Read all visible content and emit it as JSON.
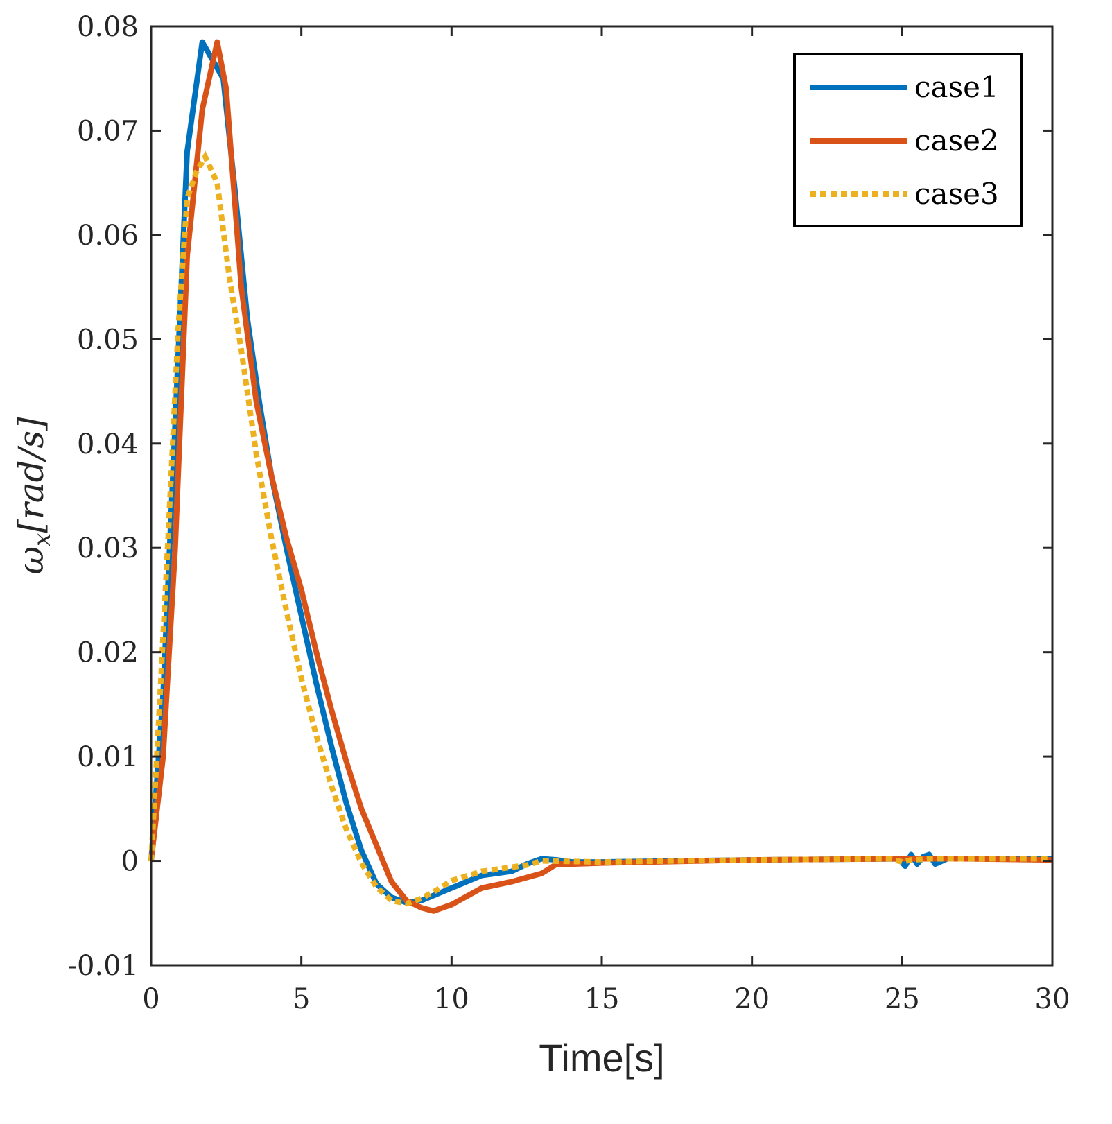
{
  "chart_data": {
    "type": "line",
    "title": "",
    "xlabel": "Time[s]",
    "ylabel": "ω_x[rad/s]",
    "ylabel_parts": {
      "symbol": "ω",
      "subscript": "x",
      "unit": "[rad/s]"
    },
    "xlim": [
      0,
      30
    ],
    "ylim": [
      -0.01,
      0.08
    ],
    "xticks": [
      0,
      5,
      10,
      15,
      20,
      25,
      30
    ],
    "xtick_labels": [
      "0",
      "5",
      "10",
      "15",
      "20",
      "25",
      "30"
    ],
    "yticks": [
      -0.01,
      0,
      0.01,
      0.02,
      0.03,
      0.04,
      0.05,
      0.06,
      0.07,
      0.08
    ],
    "ytick_labels": [
      "-0.01",
      "0",
      "0.01",
      "0.02",
      "0.03",
      "0.04",
      "0.05",
      "0.06",
      "0.07",
      "0.08"
    ],
    "grid": false,
    "legend_position": "top-right",
    "series": [
      {
        "name": "case1",
        "color": "#0072BD",
        "style": "solid",
        "x": [
          0,
          0.4,
          0.8,
          1.2,
          1.7,
          2.0,
          2.4,
          2.8,
          3.2,
          3.6,
          4.0,
          4.5,
          5.0,
          5.5,
          6.0,
          6.5,
          7.0,
          7.5,
          8.0,
          8.5,
          9.0,
          10.0,
          11.0,
          12.0,
          12.5,
          13.0,
          13.5,
          14.0,
          15.0,
          20.0,
          24.9,
          25.1,
          25.3,
          25.5,
          25.7,
          25.9,
          26.1,
          26.5,
          30.0
        ],
        "values": [
          0,
          0.016,
          0.042,
          0.068,
          0.0785,
          0.077,
          0.075,
          0.064,
          0.052,
          0.044,
          0.037,
          0.03,
          0.0235,
          0.017,
          0.011,
          0.0055,
          0.001,
          -0.0022,
          -0.0035,
          -0.004,
          -0.0038,
          -0.0026,
          -0.0014,
          -0.001,
          -0.0003,
          0.0002,
          0.0001,
          -0.0001,
          -0.0001,
          0.0001,
          0.0002,
          -0.0005,
          0.0006,
          -0.0003,
          0.0004,
          0.0006,
          -0.0003,
          0.0002,
          0.0002
        ]
      },
      {
        "name": "case2",
        "color": "#D95319",
        "style": "solid",
        "x": [
          0,
          0.4,
          0.8,
          1.2,
          1.7,
          2.2,
          2.5,
          3.0,
          3.5,
          4.0,
          4.5,
          5.0,
          5.5,
          6.0,
          6.5,
          7.0,
          7.5,
          8.0,
          8.5,
          9.0,
          9.4,
          10.0,
          11.0,
          12.0,
          13.0,
          13.5,
          14.0,
          15.0,
          20.0,
          25.0,
          27.0,
          30.0
        ],
        "values": [
          0,
          0.01,
          0.03,
          0.058,
          0.072,
          0.0785,
          0.074,
          0.055,
          0.044,
          0.037,
          0.031,
          0.026,
          0.02,
          0.0145,
          0.0095,
          0.005,
          0.0015,
          -0.002,
          -0.0038,
          -0.0045,
          -0.0048,
          -0.0042,
          -0.0026,
          -0.002,
          -0.0012,
          -0.0003,
          -0.0003,
          -0.0002,
          0.0001,
          0.0002,
          0.0002,
          0.0001
        ]
      },
      {
        "name": "case3",
        "color": "#EDB120",
        "style": "dotted",
        "x": [
          0,
          0.3,
          0.6,
          0.9,
          1.2,
          1.5,
          1.8,
          2.2,
          2.6,
          3.0,
          3.5,
          4.0,
          4.5,
          5.0,
          5.5,
          6.0,
          6.5,
          7.0,
          7.5,
          8.0,
          8.5,
          9.0,
          9.5,
          10.0,
          11.0,
          12.0,
          12.5,
          13.0,
          15.0,
          20.0,
          24.6,
          25.0,
          25.3,
          26.0,
          30.0
        ],
        "values": [
          0,
          0.016,
          0.033,
          0.051,
          0.0635,
          0.066,
          0.0675,
          0.065,
          0.056,
          0.049,
          0.039,
          0.031,
          0.024,
          0.0175,
          0.012,
          0.0072,
          0.003,
          -0.0002,
          -0.0025,
          -0.0038,
          -0.0041,
          -0.0036,
          -0.0028,
          -0.0019,
          -0.001,
          -0.0006,
          -0.0004,
          0.0,
          -0.0001,
          0.0001,
          0.0002,
          -0.0001,
          0.0001,
          0.0002,
          0.0002
        ]
      }
    ]
  }
}
